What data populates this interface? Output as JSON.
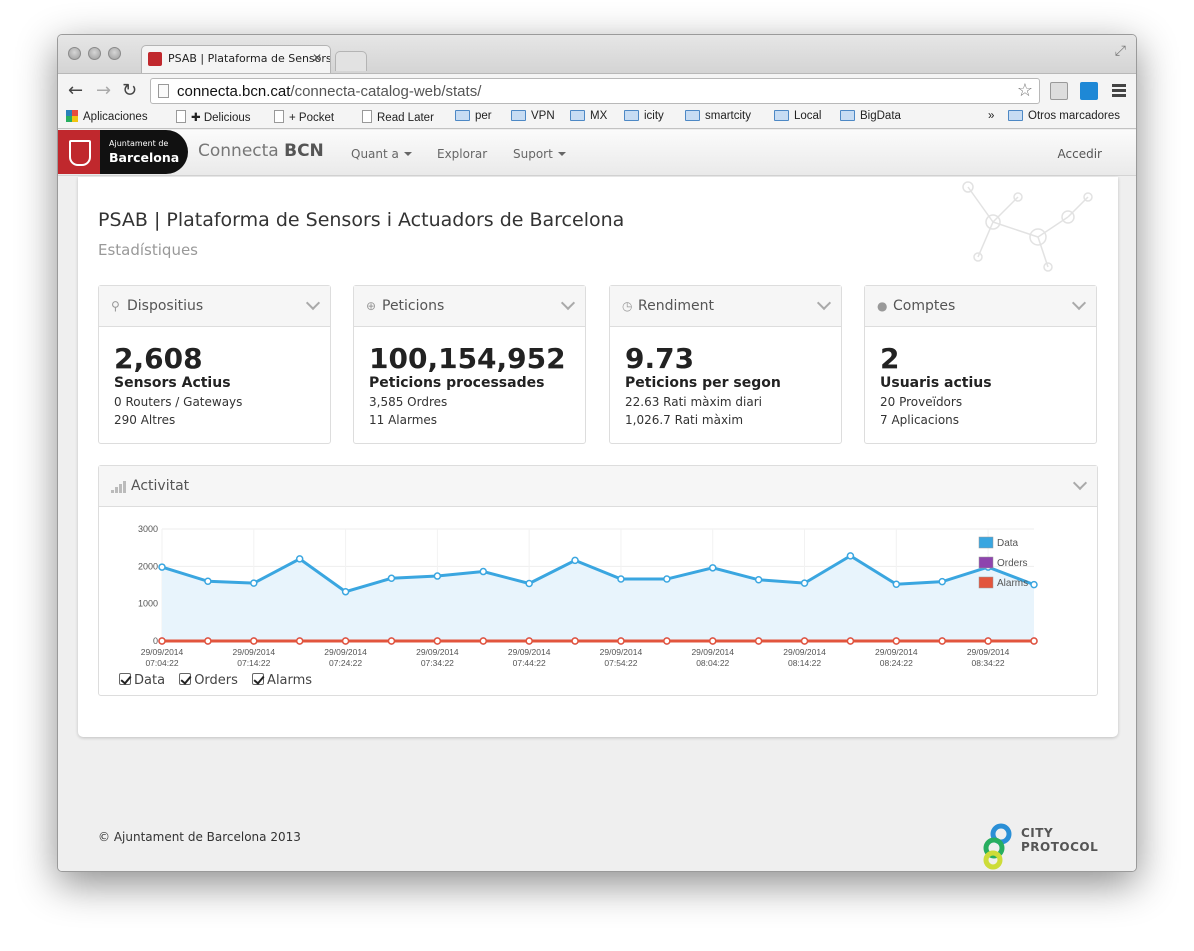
{
  "browser": {
    "tab_title": "PSAB | Plataforma de Sensors i Actuadors de Barcelona",
    "url_host": "connecta.bcn.cat",
    "url_path": "/connecta-catalog-web/stats/",
    "bookmarks": [
      "Aplicaciones",
      "✚ Delicious",
      "+ Pocket",
      "Read Later",
      "per",
      "VPN",
      "MX",
      "icity",
      "smartcity",
      "Local",
      "BigData"
    ],
    "bookmarks_overflow": "»",
    "other_bookmarks": "Otros marcadores"
  },
  "site": {
    "logo_line1": "Ajuntament de",
    "logo_line2": "Barcelona",
    "brand_light": "Connecta",
    "brand_bold": "BCN",
    "nav": [
      "Quant a",
      "Explorar",
      "Suport"
    ],
    "login": "Accedir"
  },
  "page": {
    "title": "PSAB | Plataforma de Sensors i Actuadors de Barcelona",
    "subtitle": "Estadístiques"
  },
  "cards": [
    {
      "header": "Dispositius",
      "icon": "map-pin-icon",
      "value": "2,608",
      "label": "Sensors Actius",
      "line1": "0 Routers / Gateways",
      "line2": "290 Altres"
    },
    {
      "header": "Peticions",
      "icon": "arrow-circle-icon",
      "value": "100,154,952",
      "label": "Peticions processades",
      "line1": "3,585 Ordres",
      "line2": "11 Alarmes"
    },
    {
      "header": "Rendiment",
      "icon": "clock-icon",
      "value": "9.73",
      "label": "Peticions per segon",
      "line1": "22.63 Rati màxim diari",
      "line2": "1,026.7 Rati màxim"
    },
    {
      "header": "Comptes",
      "icon": "user-icon",
      "value": "2",
      "label": "Usuaris actius",
      "line1": "20 Proveïdors",
      "line2": "7 Aplicacions"
    }
  ],
  "activity": {
    "header": "Activitat",
    "checkboxes": [
      "Data",
      "Orders",
      "Alarms"
    ]
  },
  "chart_data": {
    "type": "line",
    "ylim": [
      0,
      3000
    ],
    "yticks": [
      "3000",
      "2000",
      "1000",
      "0"
    ],
    "ytick_values": [
      3000,
      2000,
      1000,
      0
    ],
    "x_labels": [
      [
        "29/09/2014",
        "07:04:22"
      ],
      [
        "29/09/2014",
        "07:14:22"
      ],
      [
        "29/09/2014",
        "07:24:22"
      ],
      [
        "29/09/2014",
        "07:34:22"
      ],
      [
        "29/09/2014",
        "07:44:22"
      ],
      [
        "29/09/2014",
        "07:54:22"
      ],
      [
        "29/09/2014",
        "08:04:22"
      ],
      [
        "29/09/2014",
        "08:14:22"
      ],
      [
        "29/09/2014",
        "08:24:22"
      ],
      [
        "29/09/2014",
        "08:34:22"
      ]
    ],
    "series": [
      {
        "name": "Data",
        "color": "#3aa6e0",
        "values": [
          1980,
          1600,
          1550,
          2200,
          1320,
          1680,
          1740,
          1860,
          1540,
          2160,
          1660,
          1660,
          1960,
          1640,
          1550,
          2280,
          1520,
          1590,
          1980,
          1510
        ]
      },
      {
        "name": "Orders",
        "color": "#8e44ad",
        "values": [
          0,
          0,
          0,
          0,
          0,
          0,
          0,
          0,
          0,
          0,
          0,
          0,
          0,
          0,
          0,
          0,
          0,
          0,
          0,
          0
        ]
      },
      {
        "name": "Alarms",
        "color": "#e2553d",
        "values": [
          0,
          0,
          0,
          0,
          0,
          0,
          0,
          0,
          0,
          0,
          0,
          0,
          0,
          0,
          0,
          0,
          0,
          0,
          0,
          0
        ]
      }
    ],
    "legend_position": "top-right",
    "grid": true
  },
  "footer": {
    "copyright": "© Ajuntament de Barcelona 2013",
    "logo_line1": "CITY",
    "logo_line2": "PROTOCOL"
  }
}
